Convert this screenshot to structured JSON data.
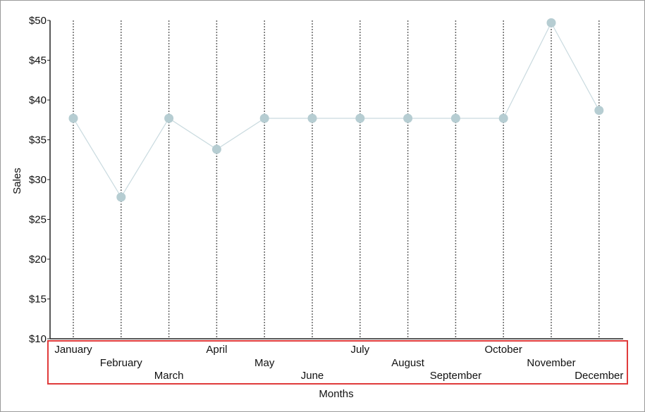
{
  "chart_data": {
    "type": "line",
    "title": "",
    "xlabel": "Months",
    "ylabel": "Sales",
    "categories": [
      "January",
      "February",
      "March",
      "April",
      "May",
      "June",
      "July",
      "August",
      "September",
      "October",
      "November",
      "December"
    ],
    "series": [
      {
        "values": [
          37.7,
          27.8,
          37.7,
          33.8,
          37.7,
          37.7,
          37.7,
          37.7,
          37.7,
          37.7,
          49.7,
          38.7
        ]
      }
    ],
    "ylim": [
      10,
      50
    ],
    "y_ticks": [
      10,
      15,
      20,
      25,
      30,
      35,
      40,
      45,
      50
    ],
    "y_tick_labels": [
      "$10",
      "$15",
      "$20",
      "$25",
      "$30",
      "$35",
      "$40",
      "$45",
      "$50"
    ],
    "grid": "vertical dotted lines at each category",
    "legend": "none",
    "highlight_box": "around x-axis category labels",
    "colors": {
      "line": "#c9dadf",
      "marker": "#b6cdd2",
      "gridline": "#666666",
      "axis": "#222222",
      "highlight": "#e03b3b"
    }
  }
}
